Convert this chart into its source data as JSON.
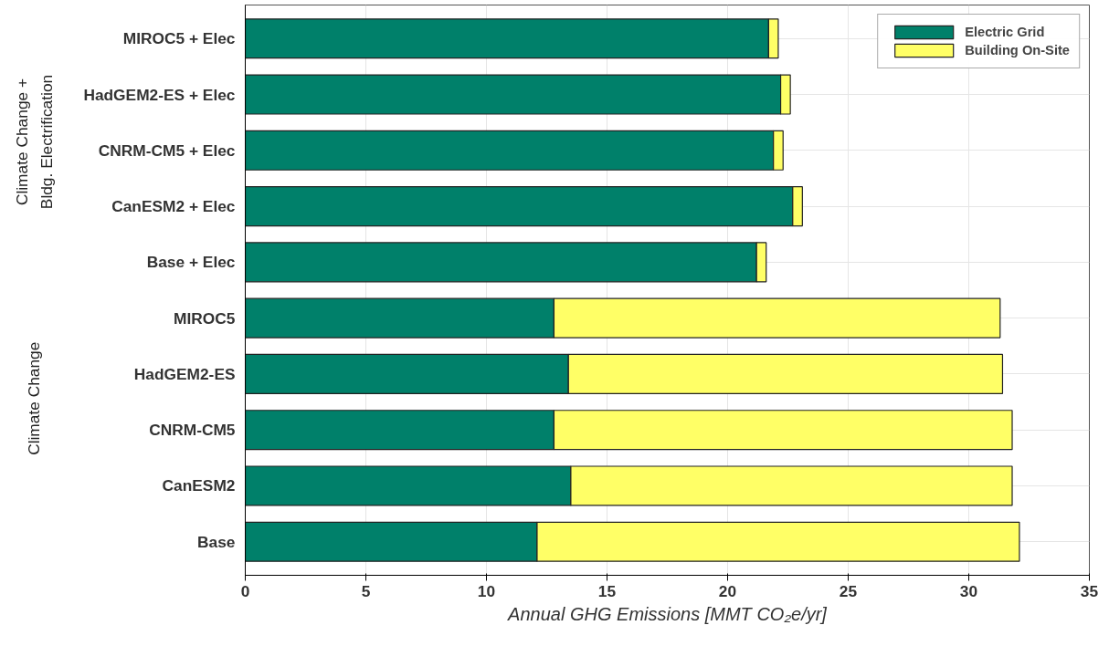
{
  "chart_data": {
    "type": "bar",
    "orientation": "horizontal",
    "stacked": true,
    "categories": [
      "MIROC5 + Elec",
      "HadGEM2-ES + Elec",
      "CNRM-CM5 + Elec",
      "CanESM2 + Elec",
      "Base + Elec",
      "MIROC5",
      "HadGEM2-ES",
      "CNRM-CM5",
      "CanESM2",
      "Base"
    ],
    "series": [
      {
        "name": "Electric Grid",
        "color": "#00806a",
        "values": [
          21.7,
          22.2,
          21.9,
          22.7,
          21.2,
          12.8,
          13.4,
          12.8,
          13.5,
          12.1
        ]
      },
      {
        "name": "Building On-Site",
        "color": "#ffff66",
        "values": [
          0.4,
          0.4,
          0.4,
          0.4,
          0.4,
          18.5,
          18.0,
          19.0,
          18.3,
          20.0
        ]
      }
    ],
    "xlabel": "Annual GHG Emissions [MMT CO₂e/yr]",
    "xlim": [
      0,
      35
    ],
    "xticks": [
      0,
      5,
      10,
      15,
      20,
      25,
      30,
      35
    ],
    "annotations": [
      "Climate Change +\nBldg. Electrification",
      "Climate Change"
    ],
    "grid": true,
    "legend": "top right"
  }
}
